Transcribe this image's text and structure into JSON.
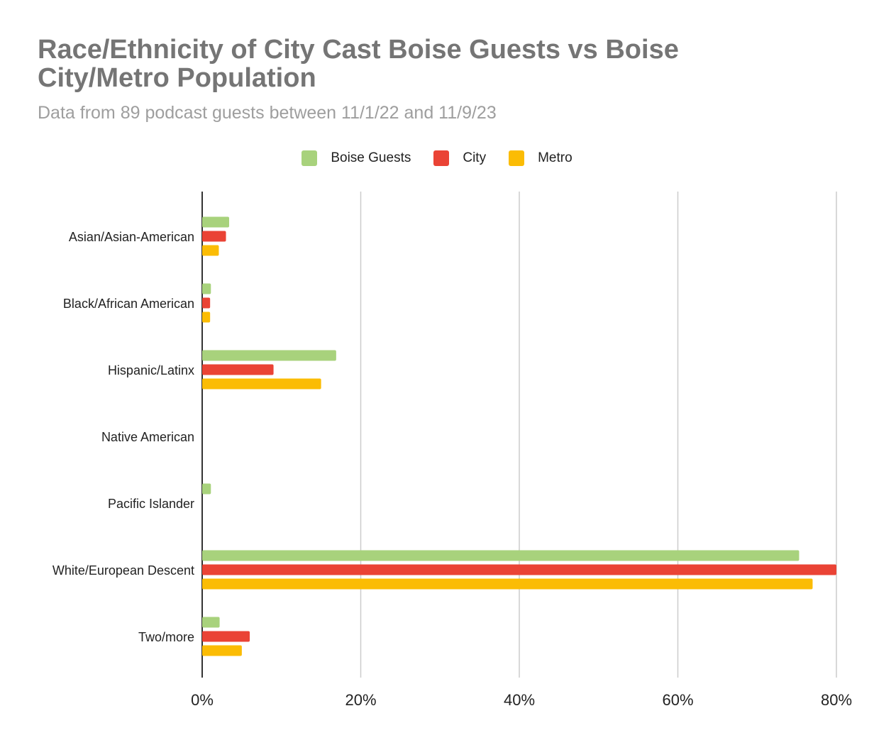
{
  "chart_data": {
    "type": "bar",
    "orientation": "horizontal",
    "title": "Race/Ethnicity of City Cast Boise Guests vs Boise City/Metro Population",
    "subtitle": "Data from 89 podcast guests between 11/1/22 and 11/9/23",
    "categories": [
      "Asian/Asian-American",
      "Black/African American",
      "Hispanic/Latinx",
      "Native American",
      "Pacific Islander",
      "White/European Descent",
      "Two/more"
    ],
    "series": [
      {
        "name": "Boise Guests",
        "color": "#a8d27c",
        "values": [
          3.4,
          1.1,
          16.9,
          0,
          1.1,
          75.3,
          2.2
        ]
      },
      {
        "name": "City",
        "color": "#ea4335",
        "values": [
          3.0,
          1.0,
          9.0,
          0,
          0,
          80.0,
          6.0
        ]
      },
      {
        "name": "Metro",
        "color": "#fbbc04",
        "values": [
          2.1,
          1.0,
          15.0,
          0,
          0,
          77.0,
          5.0
        ]
      }
    ],
    "xlim": [
      0,
      80
    ],
    "xticks": [
      "0%",
      "20%",
      "40%",
      "60%",
      "80%"
    ],
    "grid": true,
    "legend_position": "top"
  }
}
